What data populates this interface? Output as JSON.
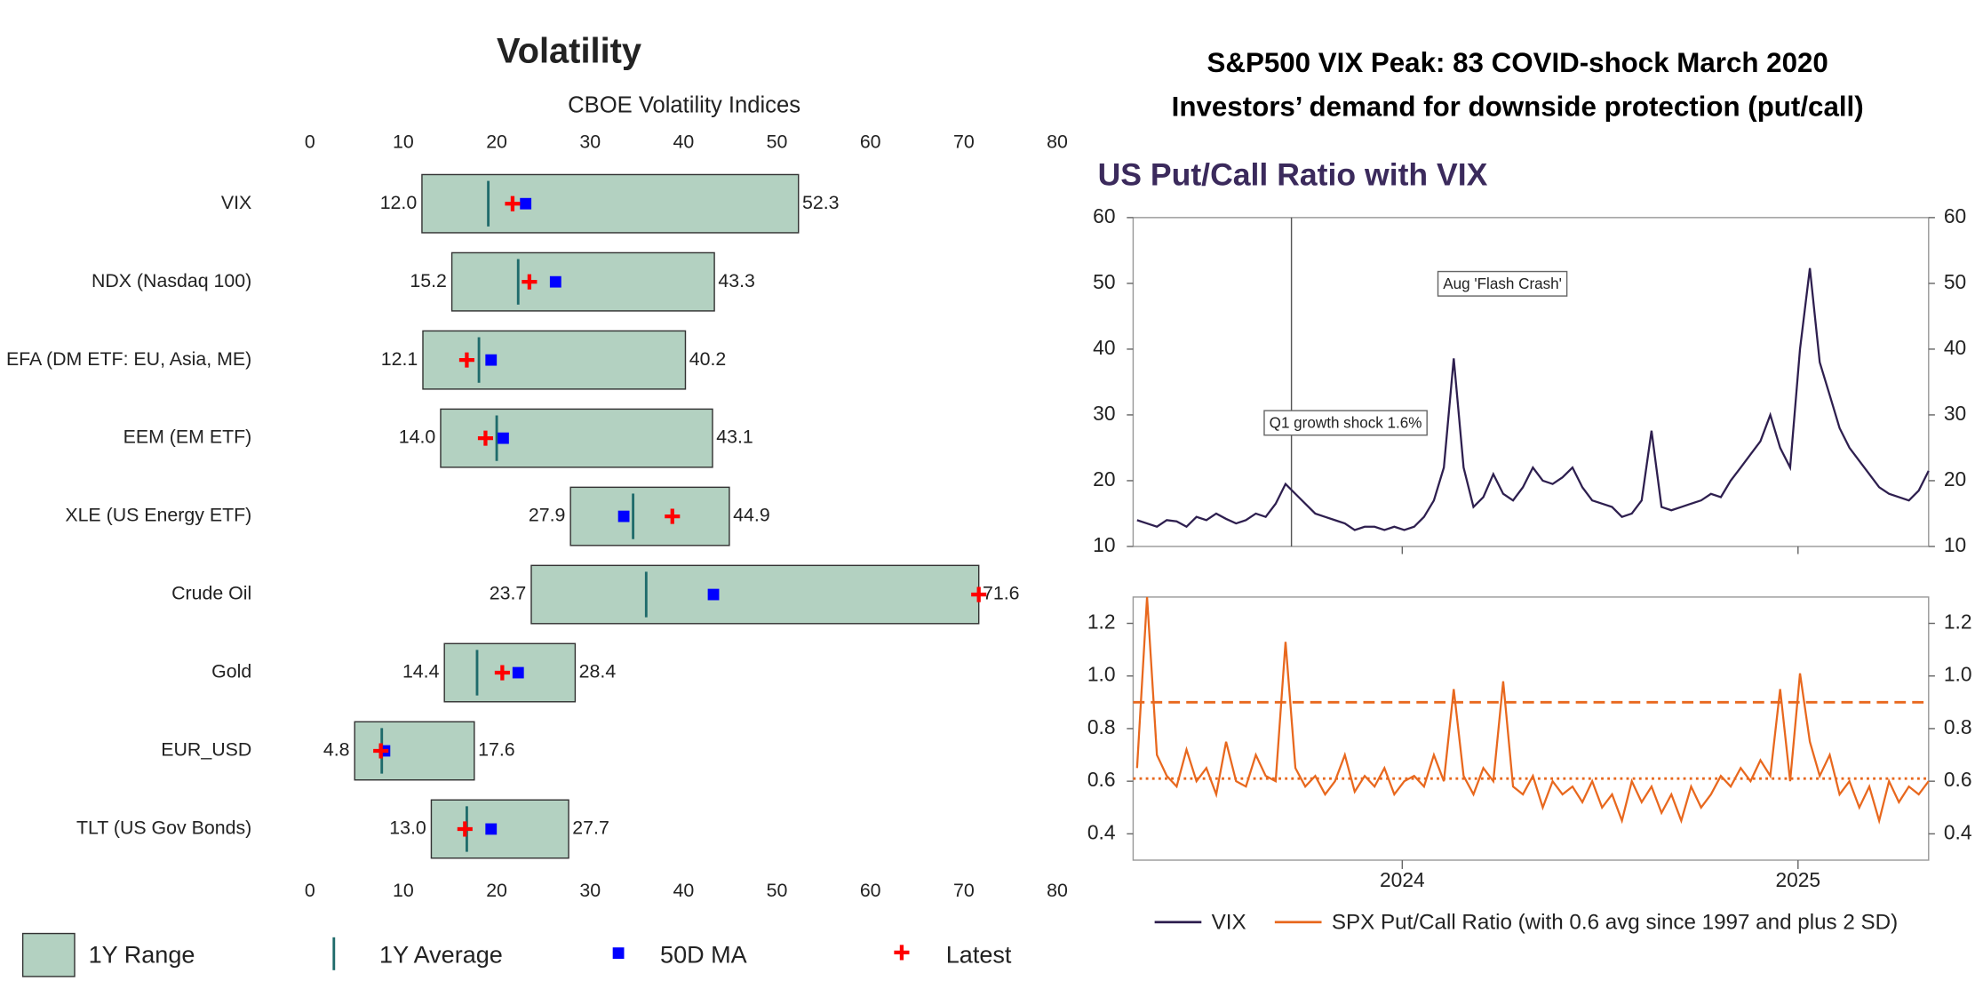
{
  "chart_data": [
    {
      "type": "range",
      "title": "Volatility",
      "subtitle": "CBOE Volatility Indices",
      "categories": [
        "VIX",
        "NDX (Nasdaq 100)",
        "EFA (DM ETF: EU, Asia, ME)",
        "EEM (EM ETF)",
        "XLE (US Energy ETF)",
        "Crude Oil",
        "Gold",
        "EUR_USD",
        "TLT (US Gov Bonds)"
      ],
      "xlim": [
        0,
        80
      ],
      "xticks": [
        0,
        10,
        20,
        30,
        40,
        50,
        60,
        70,
        80
      ],
      "series": [
        {
          "name": "1Y Range",
          "color": "#b3d1c1",
          "low": [
            12.0,
            15.2,
            12.1,
            14.0,
            27.9,
            23.7,
            14.4,
            4.8,
            13.0
          ],
          "high": [
            52.3,
            43.3,
            40.2,
            43.1,
            44.9,
            71.6,
            28.4,
            17.6,
            27.7
          ],
          "low_labels": [
            "12.0",
            "15.2",
            "12.1",
            "14.0",
            "27.9",
            "23.7",
            "14.4",
            "4.8",
            "13.0"
          ]
        },
        {
          "name": "1Y Average",
          "color": "#1f6b6b",
          "values": [
            19.1,
            22.3,
            18.1,
            20.0,
            34.6,
            36.0,
            17.9,
            7.7,
            16.8
          ]
        },
        {
          "name": "50D MA",
          "color": "#0000ff",
          "values": [
            23.1,
            26.3,
            19.4,
            20.7,
            33.6,
            43.2,
            22.3,
            8.0,
            19.4
          ]
        },
        {
          "name": "Latest",
          "color": "#ff0000",
          "values": [
            21.7,
            23.5,
            16.8,
            18.8,
            38.8,
            71.6,
            20.6,
            7.6,
            16.6
          ]
        }
      ]
    },
    {
      "type": "line",
      "header": [
        "S&P500 VIX Peak: 83 COVID-shock March 2020",
        "Investors’ demand for downside protection (put/call)"
      ],
      "title": "US Put/Call Ratio with VIX",
      "x": [
        2023.33,
        2023.355,
        2023.38,
        2023.405,
        2023.43,
        2023.455,
        2023.48,
        2023.505,
        2023.53,
        2023.555,
        2023.58,
        2023.605,
        2023.63,
        2023.655,
        2023.68,
        2023.705,
        2023.73,
        2023.755,
        2023.78,
        2023.805,
        2023.83,
        2023.855,
        2023.88,
        2023.905,
        2023.93,
        2023.955,
        2023.98,
        2024.005,
        2024.03,
        2024.055,
        2024.08,
        2024.105,
        2024.13,
        2024.155,
        2024.18,
        2024.205,
        2024.23,
        2024.255,
        2024.28,
        2024.305,
        2024.33,
        2024.355,
        2024.38,
        2024.405,
        2024.43,
        2024.455,
        2024.48,
        2024.505,
        2024.53,
        2024.555,
        2024.58,
        2024.605,
        2024.63,
        2024.655,
        2024.68,
        2024.705,
        2024.73,
        2024.755,
        2024.78,
        2024.805,
        2024.83,
        2024.855,
        2024.88,
        2024.905,
        2024.93,
        2024.955,
        2024.98,
        2025.005,
        2025.03,
        2025.055,
        2025.08,
        2025.105,
        2025.13,
        2025.155,
        2025.18,
        2025.205,
        2025.23,
        2025.255,
        2025.28,
        2025.305,
        2025.33
      ],
      "xlim": [
        2023.32,
        2025.33
      ],
      "xticks": [
        2024,
        2025
      ],
      "ylim": [
        10,
        60
      ],
      "yticks": [
        10,
        20,
        30,
        40,
        50,
        60
      ],
      "y2lim": [
        0.3,
        1.3
      ],
      "y2ticks": [
        0.4,
        0.6,
        0.8,
        {
          "value": 1.0,
          "label": "1.0"
        },
        1.2
      ],
      "vline": 2023.72,
      "annotations": [
        "Aug 'Flash Crash'",
        "Q1 growth shock 1.6%"
      ],
      "ref_lines": [
        {
          "value": 0.9,
          "style": "dashed"
        },
        {
          "value": 0.61,
          "style": "dotted"
        }
      ],
      "series": [
        {
          "name": "VIX",
          "color": "#2e1f4f",
          "values": [
            14,
            13.5,
            13,
            14,
            13.8,
            13,
            14.5,
            14,
            15,
            14.2,
            13.5,
            14,
            15,
            14.5,
            16.5,
            19.5,
            18,
            16.5,
            15,
            14.5,
            14,
            13.5,
            12.5,
            13,
            13,
            12.5,
            13,
            12.5,
            13,
            14.5,
            17,
            22,
            38.6,
            22,
            16,
            17.5,
            21,
            18,
            17,
            19,
            22,
            20,
            19.5,
            20.5,
            22,
            19,
            17,
            16.5,
            16,
            14.5,
            15,
            17,
            27.6,
            16,
            15.5,
            16,
            16.5,
            17,
            18,
            17.5,
            20,
            22,
            24,
            26,
            30,
            25,
            22,
            40,
            52.3,
            38,
            33,
            28,
            25,
            23,
            21,
            19,
            18,
            17.5,
            17,
            18.5,
            21.5
          ]
        },
        {
          "name": "SPX Put/Call Ratio (with 0.6 avg since 1997 and plus 2 SD)",
          "color": "#e8681e",
          "axis": "y2",
          "values": [
            0.65,
            1.3,
            0.7,
            0.62,
            0.58,
            0.72,
            0.6,
            0.65,
            0.55,
            0.75,
            0.6,
            0.58,
            0.7,
            0.62,
            0.6,
            1.13,
            0.65,
            0.58,
            0.62,
            0.55,
            0.6,
            0.7,
            0.56,
            0.62,
            0.58,
            0.65,
            0.55,
            0.6,
            0.62,
            0.58,
            0.7,
            0.6,
            0.95,
            0.62,
            0.55,
            0.65,
            0.6,
            0.98,
            0.58,
            0.55,
            0.62,
            0.5,
            0.6,
            0.55,
            0.58,
            0.52,
            0.6,
            0.5,
            0.55,
            0.45,
            0.6,
            0.52,
            0.58,
            0.48,
            0.55,
            0.45,
            0.58,
            0.5,
            0.55,
            0.62,
            0.58,
            0.65,
            0.6,
            0.68,
            0.62,
            0.95,
            0.6,
            1.01,
            0.75,
            0.62,
            0.7,
            0.55,
            0.6,
            0.5,
            0.58,
            0.45,
            0.6,
            0.52,
            0.58,
            0.55,
            0.6
          ]
        }
      ]
    }
  ]
}
